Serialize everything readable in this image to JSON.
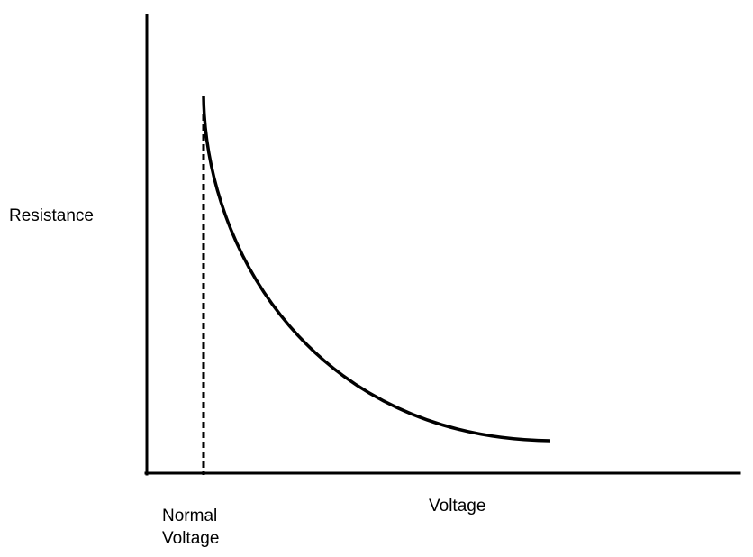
{
  "diagram": {
    "y_axis_label": "Resistance",
    "x_axis_label": "Voltage",
    "marker_label": {
      "line1": "Normal",
      "line2": "Voltage"
    },
    "colors": {
      "ink": "#000000",
      "background": "#ffffff"
    }
  }
}
